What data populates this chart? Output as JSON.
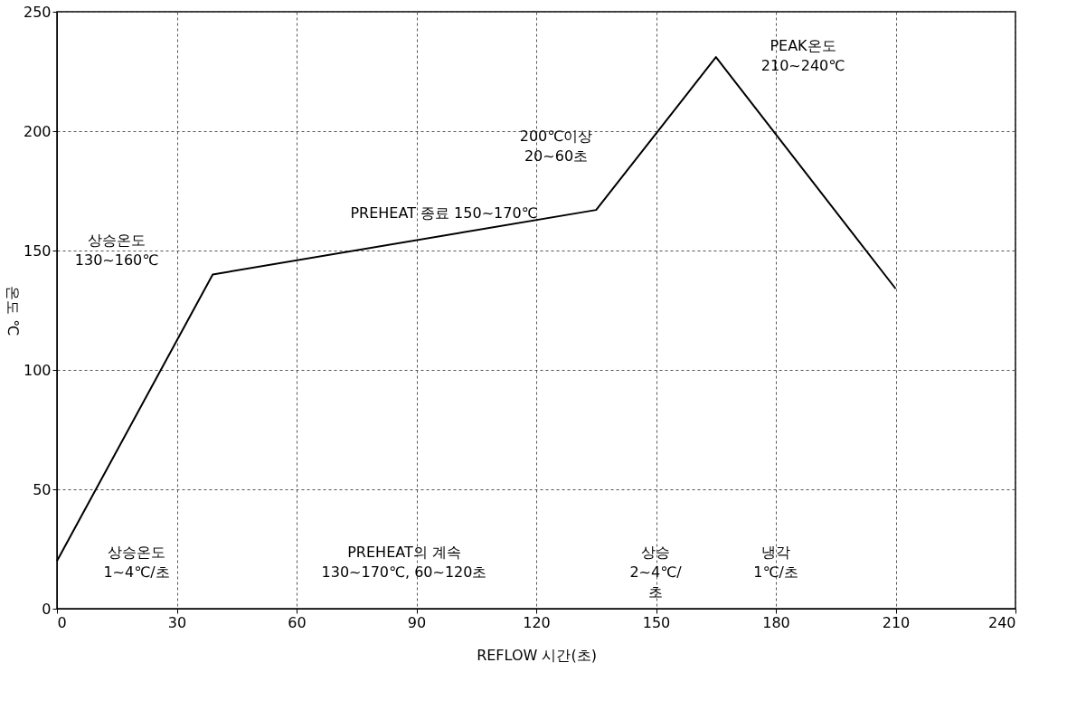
{
  "chart_data": {
    "type": "line",
    "xlabel": "REFLOW 시간(초)",
    "ylabel": "온도 ℃",
    "x": [
      0,
      39,
      135,
      165,
      210
    ],
    "series": [
      {
        "color": "#000000",
        "values": [
          20,
          140,
          167,
          231,
          134
        ]
      }
    ],
    "xlim": [
      0,
      240
    ],
    "xticks": [
      0,
      30,
      60,
      90,
      120,
      150,
      180,
      210,
      240
    ],
    "ylim": [
      0,
      250
    ],
    "yticks": [
      0,
      50,
      100,
      150,
      200,
      250
    ],
    "grid": true,
    "marker": "none",
    "line_style": "solid",
    "annotations": [
      "상승온도\n130~160℃",
      "PREHEAT 종료 150~170℃",
      "200℃이상\n20~60초",
      "PEAK온도\n210~240℃",
      "상승온도\n1~4℃/초",
      "PREHEAT의 계속\n130~170℃, 60~120초",
      "상승\n2~4℃/\n초",
      "냉각\n1℃/초"
    ]
  }
}
